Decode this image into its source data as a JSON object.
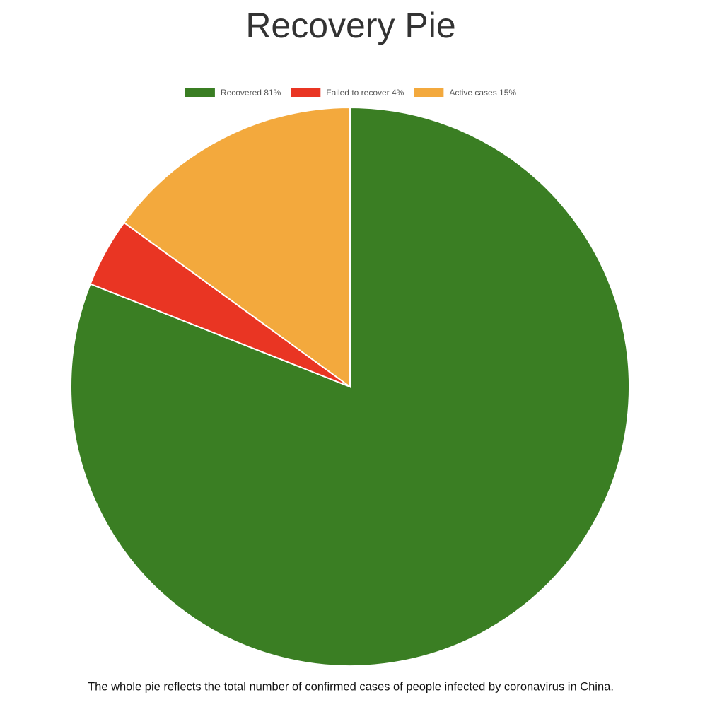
{
  "chart_data": {
    "type": "pie",
    "title": "Recovery Pie",
    "categories": [
      "Recovered 81%",
      "Failed to recover 4%",
      "Active cases 15%"
    ],
    "values": [
      81,
      4,
      15
    ],
    "colors": [
      "#3a7e23",
      "#e93523",
      "#f3a93d"
    ],
    "legend": "top",
    "caption": "The whole pie reflects the total number of confirmed cases of people infected by coronavirus in China."
  }
}
